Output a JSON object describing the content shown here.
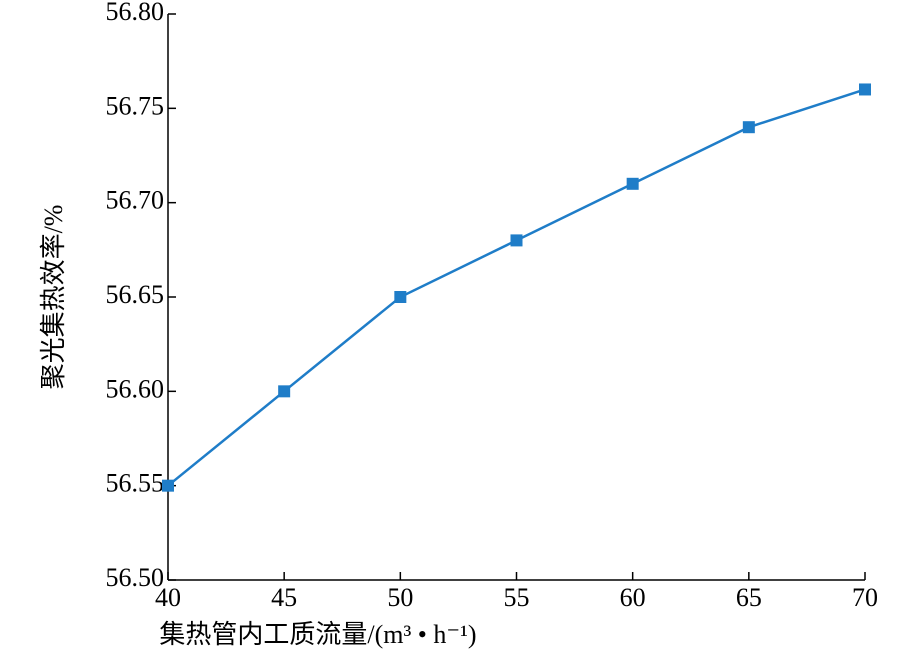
{
  "chart_data": {
    "type": "line",
    "x_label": "集热管内工质流量/(m³ • h⁻¹)",
    "y_label": "聚光集热效率/%",
    "x": [
      40,
      45,
      50,
      55,
      60,
      65,
      70
    ],
    "series": [
      {
        "color": "#1f7dc8",
        "values": [
          56.55,
          56.6,
          56.65,
          56.68,
          56.71,
          56.74,
          56.76
        ]
      }
    ],
    "xlim": [
      40,
      70
    ],
    "xticks": [
      40,
      45,
      50,
      55,
      60,
      65,
      70
    ],
    "ylim": [
      56.5,
      56.8
    ],
    "yticks": [
      {
        "value": 56.5,
        "label": "56.50"
      },
      56.55,
      {
        "value": 56.6,
        "label": "56.60"
      },
      56.65,
      {
        "value": 56.7,
        "label": "56.70"
      },
      56.75,
      {
        "value": 56.8,
        "label": "56.80"
      }
    ]
  }
}
